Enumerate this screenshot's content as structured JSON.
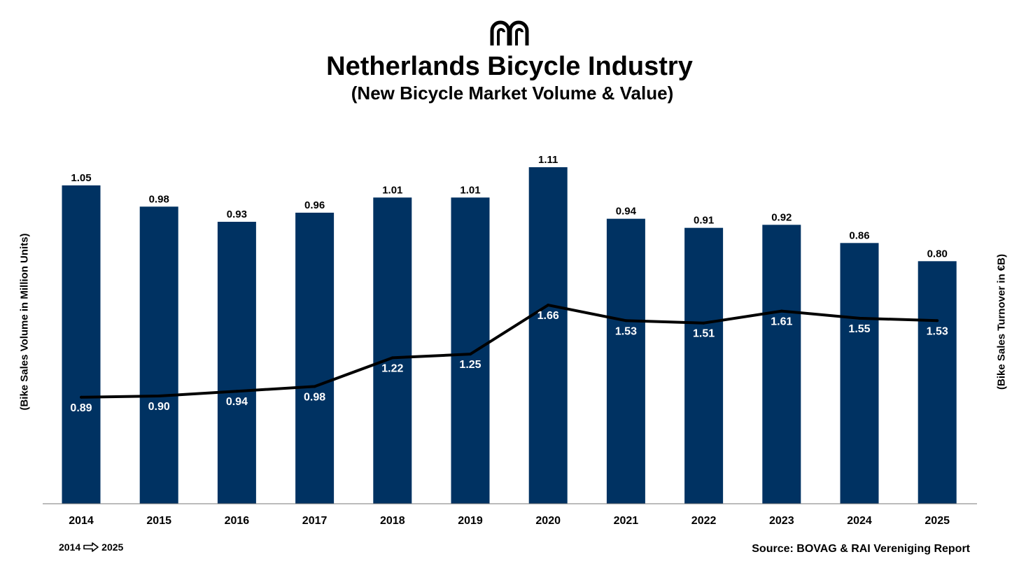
{
  "header": {
    "title": "Netherlands Bicycle Industry",
    "subtitle": "(New Bicycle Market Volume & Value)",
    "logo_icon": "arch-logo-icon"
  },
  "footer": {
    "range_start": "2014",
    "range_end": "2025",
    "range_arrow_icon": "right-arrow-icon",
    "source": "Source: BOVAG & RAI Vereniging Report"
  },
  "colors": {
    "bar": "#003262",
    "line": "#000000",
    "bar_label": "#000000",
    "line_label": "#ffffff"
  },
  "chart_data": {
    "type": "bar",
    "categories": [
      "2014",
      "2015",
      "2016",
      "2017",
      "2018",
      "2019",
      "2020",
      "2021",
      "2022",
      "2023",
      "2024",
      "2025"
    ],
    "ylabel": "(Bike Sales Volume in Million Units)",
    "y2label": "(Bike Sales Turnover in €B)",
    "grid": false,
    "ylim": [
      0,
      1.2
    ],
    "y2lim": [
      0,
      3.04
    ],
    "series": [
      {
        "type": "bar",
        "axis": "left",
        "values": [
          1.05,
          0.98,
          0.93,
          0.96,
          1.01,
          1.01,
          1.11,
          0.94,
          0.91,
          0.92,
          0.86,
          0.8
        ],
        "labels": [
          "1.05",
          "0.98",
          "0.93",
          "0.96",
          "1.01",
          "1.01",
          "1.11",
          "0.94",
          "0.91",
          "0.92",
          "0.86",
          "0.80"
        ]
      },
      {
        "type": "line",
        "axis": "right",
        "values": [
          0.89,
          0.9,
          0.94,
          0.98,
          1.22,
          1.25,
          1.66,
          1.53,
          1.51,
          1.61,
          1.55,
          1.53
        ],
        "labels": [
          "0.89",
          "0.90",
          "0.94",
          "0.98",
          "1.22",
          "1.25",
          "1.66",
          "1.53",
          "1.51",
          "1.61",
          "1.55",
          "1.53"
        ]
      }
    ]
  }
}
